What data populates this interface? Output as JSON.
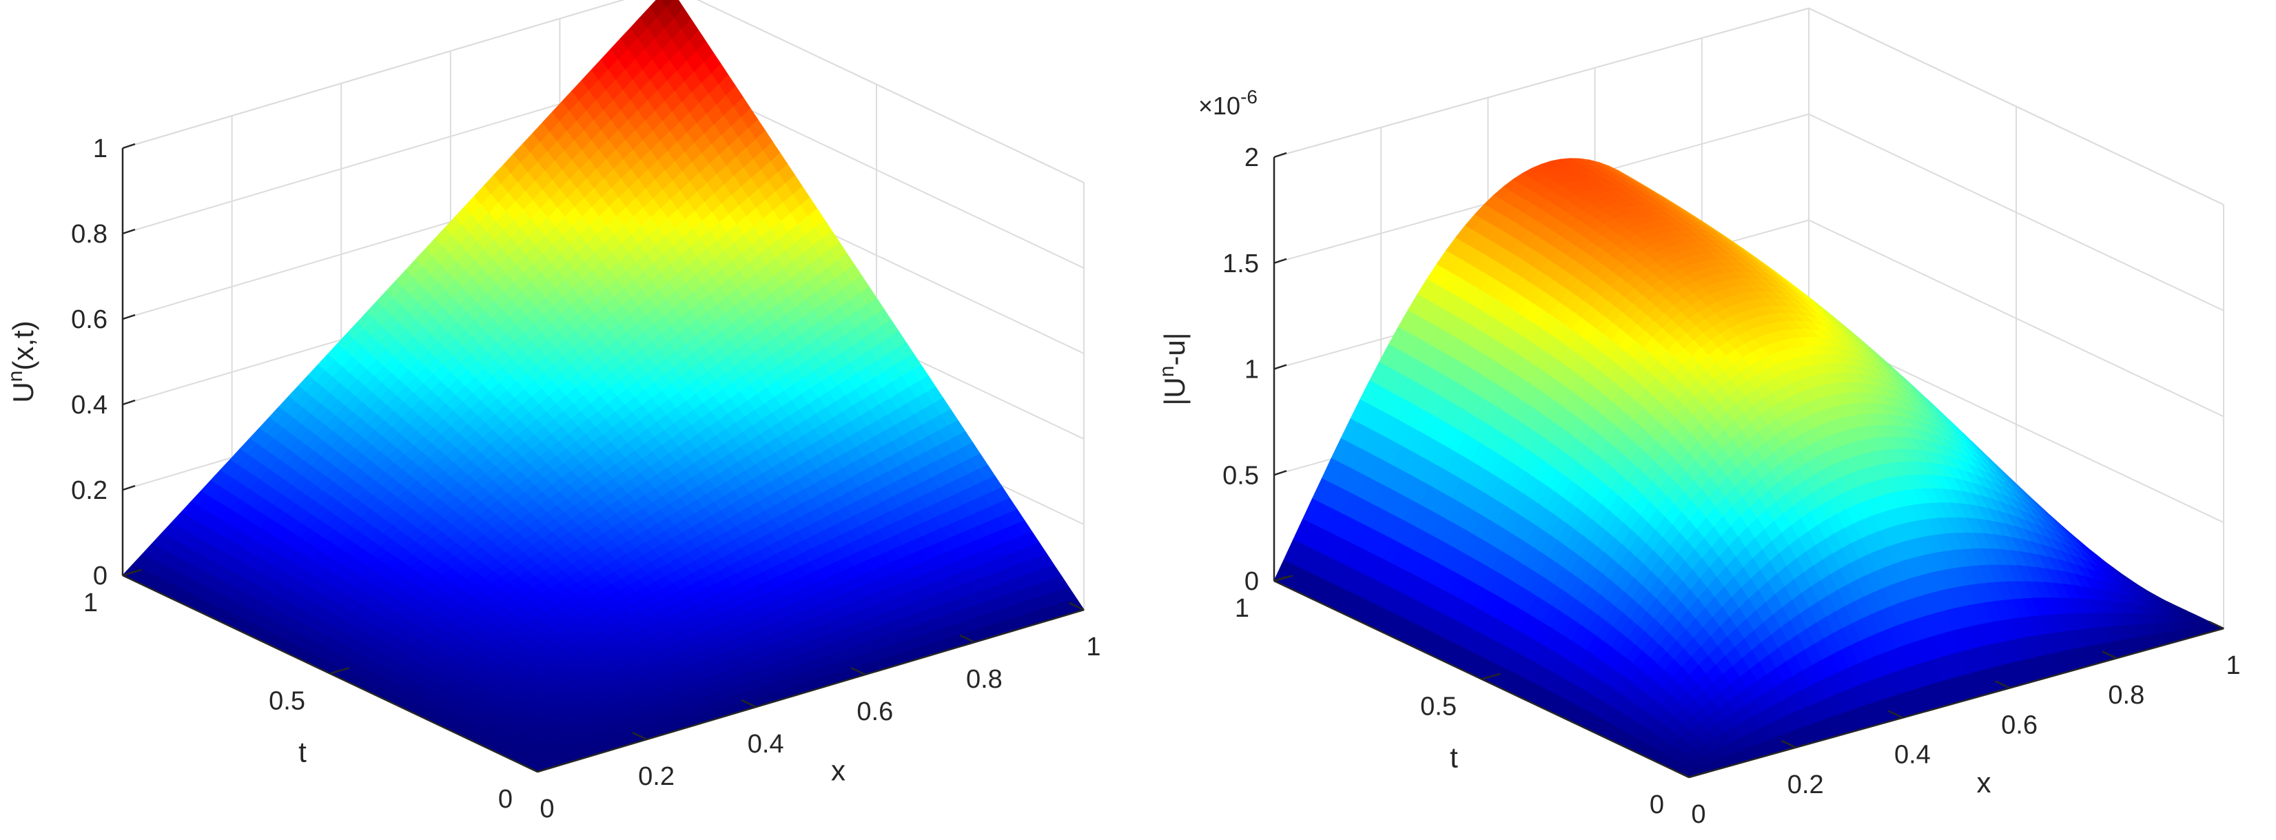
{
  "chart_data": [
    {
      "type": "surface",
      "zlabel": "U^n(x,t)",
      "xlabel": "x",
      "ylabel": "t",
      "xlim": [
        0,
        1
      ],
      "ylim": [
        0,
        1
      ],
      "zlim": [
        0,
        1
      ],
      "x_ticks": [
        "0",
        "0.2",
        "0.4",
        "0.6",
        "0.8",
        "1"
      ],
      "t_ticks": [
        "0",
        "0.5",
        "1"
      ],
      "z_ticks": [
        "0",
        "0.2",
        "0.4",
        "0.6",
        "0.8",
        "1"
      ],
      "z_exponent": "",
      "colormap": "jet",
      "grid": true,
      "samples": {
        "x": [
          0,
          0.25,
          0.5,
          0.75,
          1
        ],
        "t": [
          0,
          0.25,
          0.5,
          0.75,
          1
        ],
        "z": [
          [
            0,
            0,
            0,
            0,
            0
          ],
          [
            0,
            0.06,
            0.13,
            0.19,
            0.25
          ],
          [
            0,
            0.13,
            0.25,
            0.38,
            0.5
          ],
          [
            0,
            0.19,
            0.38,
            0.56,
            0.75
          ],
          [
            0,
            0.25,
            0.5,
            0.75,
            1
          ]
        ]
      }
    },
    {
      "type": "surface",
      "zlabel": "|U^n-u|",
      "xlabel": "x",
      "ylabel": "t",
      "xlim": [
        0,
        1
      ],
      "ylim": [
        0,
        1
      ],
      "zlim": [
        0,
        2
      ],
      "x_ticks": [
        "0",
        "0.2",
        "0.4",
        "0.6",
        "0.8",
        "1"
      ],
      "t_ticks": [
        "0",
        "0.5",
        "1"
      ],
      "z_ticks": [
        "0",
        "0.5",
        "1",
        "1.5",
        "2"
      ],
      "z_exponent": "×10^-6",
      "colormap": "jet",
      "grid": true,
      "samples": {
        "x": [
          0,
          0.25,
          0.5,
          0.75,
          1
        ],
        "t": [
          0,
          0.25,
          0.5,
          0.75,
          1
        ],
        "z": [
          [
            0,
            0,
            0,
            0,
            0
          ],
          [
            0,
            0.6,
            0.8,
            0.72,
            0
          ],
          [
            0,
            1.0,
            1.3,
            1.25,
            0
          ],
          [
            0,
            1.25,
            1.48,
            1.55,
            0
          ],
          [
            0,
            1.38,
            1.58,
            1.7,
            0
          ]
        ]
      }
    }
  ]
}
